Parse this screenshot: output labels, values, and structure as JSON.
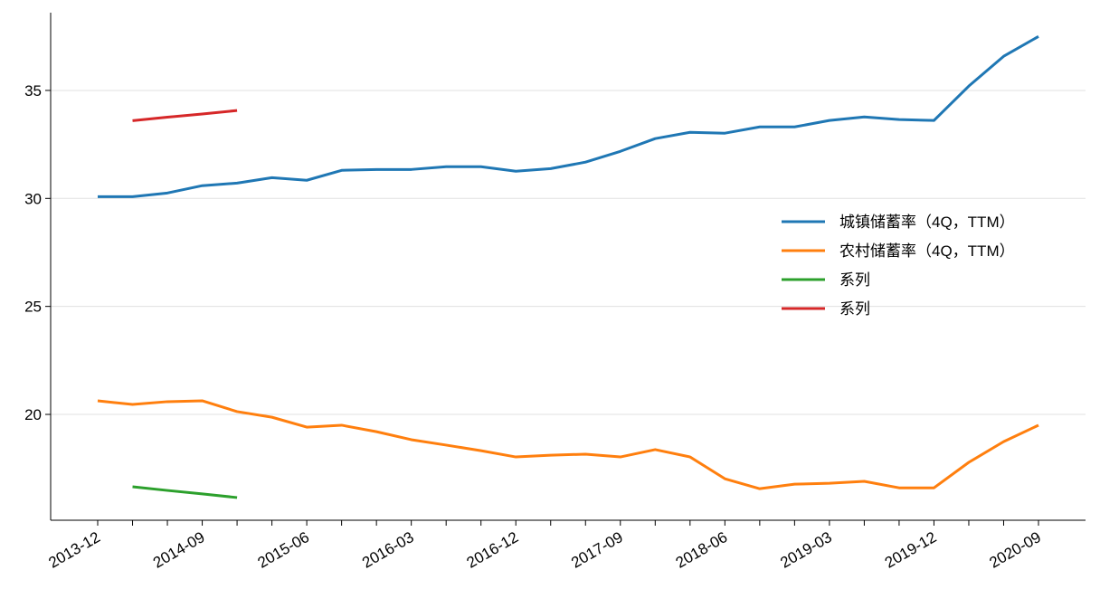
{
  "chart_data": {
    "type": "line",
    "categories": [
      "2013-12",
      null,
      null,
      "2014-09",
      null,
      null,
      "2015-06",
      null,
      null,
      "2016-03",
      null,
      null,
      "2016-12",
      null,
      null,
      "2017-09",
      null,
      null,
      "2018-06",
      null,
      null,
      "2019-03",
      null,
      null,
      "2019-12",
      null,
      null,
      "2020-09"
    ],
    "series": [
      {
        "name": "城镇储蓄率（4Q，TTM）",
        "color": "#1f77b4",
        "values": [
          30.08,
          30.08,
          30.25,
          30.59,
          30.71,
          30.96,
          30.84,
          31.3,
          31.34,
          31.34,
          31.47,
          31.47,
          31.26,
          31.38,
          31.68,
          32.18,
          32.77,
          33.06,
          33.02,
          33.31,
          33.31,
          33.61,
          33.77,
          33.65,
          33.61,
          35.2,
          36.58,
          37.5
        ]
      },
      {
        "name": "农村储蓄率（4Q，TTM）",
        "color": "#ff7f0e",
        "values": [
          20.63,
          20.46,
          20.59,
          20.63,
          20.13,
          19.87,
          19.41,
          19.5,
          19.2,
          18.83,
          18.58,
          18.32,
          18.03,
          18.11,
          18.16,
          18.03,
          18.37,
          18.03,
          17.02,
          16.56,
          16.77,
          16.81,
          16.9,
          16.6,
          16.6,
          17.78,
          18.74,
          19.5
        ]
      },
      {
        "name": "系列",
        "color": "#2ca02c",
        "values": [
          null,
          16.65,
          16.48,
          16.32,
          16.15,
          null,
          null,
          null,
          null,
          null,
          null,
          null,
          null,
          null,
          null,
          null,
          null,
          null,
          null,
          null,
          null,
          null,
          null,
          null,
          null,
          null,
          null,
          null
        ]
      },
      {
        "name": "系列",
        "color": "#d62728",
        "values": [
          null,
          33.6,
          33.76,
          33.91,
          34.07,
          null,
          null,
          null,
          null,
          null,
          null,
          null,
          null,
          null,
          null,
          null,
          null,
          null,
          null,
          null,
          null,
          null,
          null,
          null,
          null,
          null,
          null,
          null
        ]
      }
    ],
    "ylim": [
      15.1,
      38.6
    ],
    "yticks": [
      20,
      25,
      30,
      35
    ],
    "grid": true,
    "legend": "right"
  }
}
